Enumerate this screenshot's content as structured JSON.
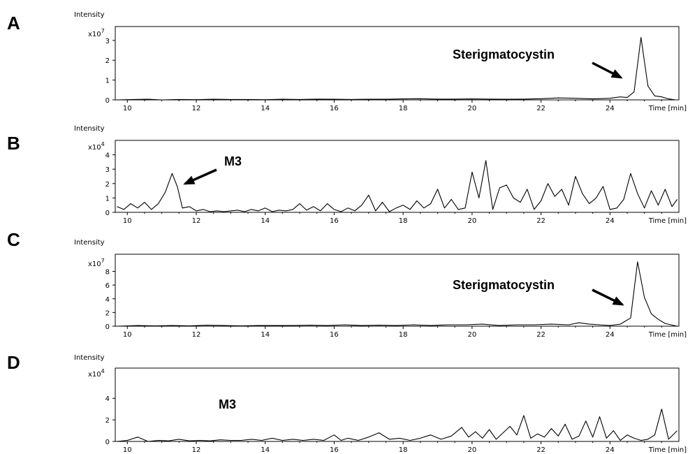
{
  "chart_data": [
    {
      "type": "line",
      "panel": "A",
      "ylabel": "Intensity",
      "y_multiplier": {
        "base": "x10",
        "exponent": "7"
      },
      "xlabel": "Time [min]",
      "x_ticks": [
        "10",
        "12",
        "14",
        "16",
        "18",
        "20",
        "22",
        "24"
      ],
      "y_ticks": [
        "0",
        "1",
        "2",
        "3"
      ],
      "xlim": [
        9.65,
        26.0
      ],
      "ylim": [
        0,
        3.7
      ],
      "annotation": {
        "text": "Sterigmatocystin",
        "arrow_to": [
          24.7,
          0.35
        ]
      },
      "series": [
        {
          "x": [
            9.7,
            10.2,
            10.6,
            11.0,
            11.5,
            12.0,
            12.5,
            13.0,
            13.5,
            14.0,
            14.5,
            15.0,
            15.5,
            16.0,
            16.5,
            17.0,
            17.5,
            18.0,
            18.5,
            19.0,
            19.5,
            20.0,
            20.5,
            21.0,
            21.5,
            22.0,
            22.5,
            23.0,
            23.5,
            24.0,
            24.3,
            24.5,
            24.7,
            24.9,
            25.1,
            25.3,
            25.5,
            25.7,
            25.9
          ],
          "y": [
            0,
            0.02,
            0.03,
            0,
            0.02,
            0.01,
            0.03,
            0.02,
            0.02,
            0.01,
            0.03,
            0.02,
            0.04,
            0.03,
            0.02,
            0.03,
            0.03,
            0.05,
            0.06,
            0.04,
            0.04,
            0.05,
            0.04,
            0.03,
            0.04,
            0.06,
            0.1,
            0.08,
            0.05,
            0.08,
            0.15,
            0.12,
            0.4,
            3.15,
            0.7,
            0.2,
            0.15,
            0.05,
            0
          ]
        }
      ]
    },
    {
      "type": "line",
      "panel": "B",
      "ylabel": "Intensity",
      "y_multiplier": {
        "base": "x10",
        "exponent": "4"
      },
      "xlabel": "Time [min]",
      "x_ticks": [
        "10",
        "12",
        "14",
        "16",
        "18",
        "20",
        "22",
        "24"
      ],
      "y_ticks": [
        "0",
        "1",
        "2",
        "3",
        "4"
      ],
      "xlim": [
        9.65,
        26.0
      ],
      "ylim": [
        0,
        5.0
      ],
      "annotation": {
        "text": "M3",
        "arrow_to": [
          11.55,
          2.1
        ]
      },
      "series": [
        {
          "x": [
            9.7,
            9.9,
            10.1,
            10.3,
            10.5,
            10.7,
            10.9,
            11.1,
            11.3,
            11.45,
            11.6,
            11.8,
            12.0,
            12.2,
            12.4,
            12.6,
            12.8,
            13.0,
            13.2,
            13.4,
            13.6,
            13.8,
            14.0,
            14.2,
            14.4,
            14.6,
            14.8,
            15.0,
            15.2,
            15.4,
            15.6,
            15.8,
            16.0,
            16.2,
            16.4,
            16.6,
            16.8,
            17.0,
            17.2,
            17.4,
            17.6,
            17.8,
            18.0,
            18.2,
            18.4,
            18.6,
            18.8,
            19.0,
            19.2,
            19.4,
            19.6,
            19.8,
            20.0,
            20.2,
            20.4,
            20.6,
            20.8,
            21.0,
            21.2,
            21.4,
            21.6,
            21.8,
            22.0,
            22.2,
            22.4,
            22.6,
            22.8,
            23.0,
            23.2,
            23.4,
            23.6,
            23.8,
            24.0,
            24.2,
            24.4,
            24.6,
            24.8,
            25.0,
            25.2,
            25.4,
            25.6,
            25.8,
            25.95
          ],
          "y": [
            0.4,
            0.2,
            0.6,
            0.3,
            0.7,
            0.2,
            0.6,
            1.4,
            2.7,
            1.8,
            0.3,
            0.4,
            0.1,
            0.2,
            0.05,
            0.1,
            0.05,
            0.1,
            0.15,
            0.05,
            0.2,
            0.1,
            0.3,
            0.05,
            0.15,
            0.1,
            0.2,
            0.6,
            0.15,
            0.4,
            0.1,
            0.6,
            0.2,
            0.05,
            0.3,
            0.1,
            0.5,
            1.2,
            0.1,
            0.7,
            0.05,
            0.3,
            0.5,
            0.2,
            0.8,
            0.3,
            0.6,
            1.6,
            0.3,
            0.9,
            0.2,
            0.3,
            2.8,
            1.0,
            3.6,
            0.2,
            1.7,
            1.9,
            1.0,
            0.7,
            1.6,
            0.2,
            0.8,
            2.0,
            1.1,
            1.6,
            0.5,
            2.5,
            1.3,
            0.6,
            1.0,
            1.8,
            0.2,
            0.3,
            0.9,
            2.7,
            1.3,
            0.3,
            1.5,
            0.5,
            1.6,
            0.4,
            0.9
          ]
        }
      ]
    },
    {
      "type": "line",
      "panel": "C",
      "ylabel": "Intensity",
      "y_multiplier": {
        "base": "x10",
        "exponent": "7"
      },
      "xlabel": "Time [min]",
      "x_ticks": [
        "10",
        "12",
        "14",
        "16",
        "18",
        "20",
        "22",
        "24"
      ],
      "y_ticks": [
        "0",
        "2",
        "4",
        "6",
        "8"
      ],
      "xlim": [
        9.65,
        26.0
      ],
      "ylim": [
        0,
        10.5
      ],
      "annotation": {
        "text": "Sterigmatocystin",
        "arrow_to": [
          24.6,
          3.6
        ]
      },
      "series": [
        {
          "x": [
            9.7,
            10.3,
            10.8,
            11.3,
            11.8,
            12.3,
            12.8,
            13.3,
            13.8,
            14.3,
            14.8,
            15.3,
            15.8,
            16.3,
            16.8,
            17.3,
            17.8,
            18.3,
            18.8,
            19.3,
            19.8,
            20.3,
            20.8,
            21.3,
            21.8,
            22.3,
            22.8,
            23.1,
            23.4,
            23.7,
            24.0,
            24.3,
            24.6,
            24.8,
            25.0,
            25.2,
            25.4,
            25.6,
            25.95
          ],
          "y": [
            0,
            0.1,
            0.05,
            0.1,
            0.05,
            0.15,
            0.1,
            0.05,
            0.1,
            0.1,
            0.1,
            0.15,
            0.1,
            0.2,
            0.1,
            0.15,
            0.1,
            0.2,
            0.1,
            0.2,
            0.2,
            0.3,
            0.1,
            0.2,
            0.2,
            0.3,
            0.2,
            0.5,
            0.3,
            0.2,
            0.1,
            0.3,
            1.2,
            9.4,
            4.2,
            1.8,
            1.0,
            0.4,
            0
          ]
        }
      ]
    },
    {
      "type": "line",
      "panel": "D",
      "ylabel": "Intensity",
      "y_multiplier": {
        "base": "x10",
        "exponent": "4"
      },
      "xlabel": "Time [min]",
      "x_ticks": [
        "10",
        "12",
        "14",
        "16",
        "18",
        "20",
        "22",
        "24"
      ],
      "y_ticks": [
        "0",
        "2",
        "4"
      ],
      "xlim": [
        9.65,
        26.0
      ],
      "ylim": [
        0,
        6.8
      ],
      "annotation": {
        "text": "M3"
      },
      "series": [
        {
          "x": [
            9.7,
            10.0,
            10.3,
            10.6,
            10.9,
            11.2,
            11.5,
            11.8,
            12.1,
            12.4,
            12.7,
            13.0,
            13.3,
            13.6,
            13.9,
            14.2,
            14.5,
            14.8,
            15.1,
            15.4,
            15.7,
            16.0,
            16.2,
            16.4,
            16.7,
            17.0,
            17.3,
            17.6,
            17.9,
            18.2,
            18.5,
            18.8,
            19.1,
            19.4,
            19.7,
            19.9,
            20.1,
            20.3,
            20.5,
            20.7,
            20.9,
            21.1,
            21.3,
            21.5,
            21.7,
            21.9,
            22.1,
            22.3,
            22.5,
            22.7,
            22.9,
            23.1,
            23.3,
            23.5,
            23.7,
            23.9,
            24.1,
            24.3,
            24.5,
            24.7,
            24.9,
            25.1,
            25.3,
            25.5,
            25.7,
            25.95
          ],
          "y": [
            0,
            0.1,
            0.4,
            0,
            0.1,
            0.05,
            0.2,
            0.05,
            0.1,
            0.05,
            0.15,
            0.1,
            0.1,
            0.2,
            0.1,
            0.3,
            0.1,
            0.2,
            0.1,
            0.2,
            0.1,
            0.6,
            0.1,
            0.3,
            0.1,
            0.4,
            0.8,
            0.2,
            0.3,
            0.1,
            0.3,
            0.6,
            0.2,
            0.5,
            1.3,
            0.4,
            0.9,
            0.3,
            1.1,
            0.2,
            0.8,
            1.4,
            0.6,
            2.4,
            0.3,
            0.7,
            0.4,
            1.2,
            0.5,
            1.6,
            0.2,
            0.5,
            1.9,
            0.4,
            2.3,
            0.3,
            1.0,
            0.1,
            0.6,
            0.3,
            0.1,
            0.2,
            0.6,
            3.0,
            0.2,
            1.0
          ]
        }
      ]
    }
  ]
}
